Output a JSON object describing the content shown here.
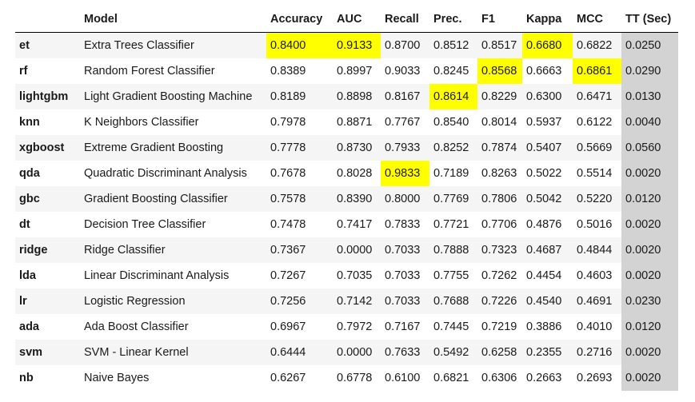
{
  "columns": [
    "",
    "Model",
    "Accuracy",
    "AUC",
    "Recall",
    "Prec.",
    "F1",
    "Kappa",
    "MCC",
    "TT (Sec)"
  ],
  "highlight_color": "#ffff00",
  "tt_column_color": "#d3d3d3",
  "stripe_color": "#f5f5f5",
  "rows": [
    {
      "id": "et",
      "model": "Extra Trees Classifier",
      "values": [
        "0.8400",
        "0.9133",
        "0.8700",
        "0.8512",
        "0.8517",
        "0.6680",
        "0.6822",
        "0.0250"
      ],
      "highlight": [
        0,
        1,
        5
      ]
    },
    {
      "id": "rf",
      "model": "Random Forest Classifier",
      "values": [
        "0.8389",
        "0.8997",
        "0.9033",
        "0.8245",
        "0.8568",
        "0.6663",
        "0.6861",
        "0.0290"
      ],
      "highlight": [
        4,
        6
      ]
    },
    {
      "id": "lightgbm",
      "model": "Light Gradient Boosting Machine",
      "values": [
        "0.8189",
        "0.8898",
        "0.8167",
        "0.8614",
        "0.8229",
        "0.6300",
        "0.6471",
        "0.0130"
      ],
      "highlight": [
        3
      ]
    },
    {
      "id": "knn",
      "model": "K Neighbors Classifier",
      "values": [
        "0.7978",
        "0.8871",
        "0.7767",
        "0.8540",
        "0.8014",
        "0.5937",
        "0.6122",
        "0.0040"
      ],
      "highlight": []
    },
    {
      "id": "xgboost",
      "model": "Extreme Gradient Boosting",
      "values": [
        "0.7778",
        "0.8730",
        "0.7933",
        "0.8252",
        "0.7874",
        "0.5407",
        "0.5669",
        "0.0560"
      ],
      "highlight": []
    },
    {
      "id": "qda",
      "model": "Quadratic Discriminant Analysis",
      "values": [
        "0.7678",
        "0.8028",
        "0.9833",
        "0.7189",
        "0.8263",
        "0.5022",
        "0.5514",
        "0.0020"
      ],
      "highlight": [
        2
      ]
    },
    {
      "id": "gbc",
      "model": "Gradient Boosting Classifier",
      "values": [
        "0.7578",
        "0.8390",
        "0.8000",
        "0.7769",
        "0.7806",
        "0.5042",
        "0.5220",
        "0.0120"
      ],
      "highlight": []
    },
    {
      "id": "dt",
      "model": "Decision Tree Classifier",
      "values": [
        "0.7478",
        "0.7417",
        "0.7833",
        "0.7721",
        "0.7706",
        "0.4876",
        "0.5016",
        "0.0020"
      ],
      "highlight": []
    },
    {
      "id": "ridge",
      "model": "Ridge Classifier",
      "values": [
        "0.7367",
        "0.0000",
        "0.7033",
        "0.7888",
        "0.7323",
        "0.4687",
        "0.4844",
        "0.0020"
      ],
      "highlight": []
    },
    {
      "id": "lda",
      "model": "Linear Discriminant Analysis",
      "values": [
        "0.7267",
        "0.7035",
        "0.7033",
        "0.7755",
        "0.7262",
        "0.4454",
        "0.4603",
        "0.0020"
      ],
      "highlight": []
    },
    {
      "id": "lr",
      "model": "Logistic Regression",
      "values": [
        "0.7256",
        "0.7142",
        "0.7033",
        "0.7688",
        "0.7226",
        "0.4540",
        "0.4691",
        "0.0230"
      ],
      "highlight": []
    },
    {
      "id": "ada",
      "model": "Ada Boost Classifier",
      "values": [
        "0.6967",
        "0.7972",
        "0.7167",
        "0.7445",
        "0.7219",
        "0.3886",
        "0.4010",
        "0.0120"
      ],
      "highlight": []
    },
    {
      "id": "svm",
      "model": "SVM - Linear Kernel",
      "values": [
        "0.6444",
        "0.0000",
        "0.7633",
        "0.5492",
        "0.6258",
        "0.2355",
        "0.2716",
        "0.0020"
      ],
      "highlight": []
    },
    {
      "id": "nb",
      "model": "Naive Bayes",
      "values": [
        "0.6267",
        "0.6778",
        "0.6100",
        "0.6821",
        "0.6306",
        "0.2663",
        "0.2693",
        "0.0020"
      ],
      "highlight": []
    }
  ]
}
